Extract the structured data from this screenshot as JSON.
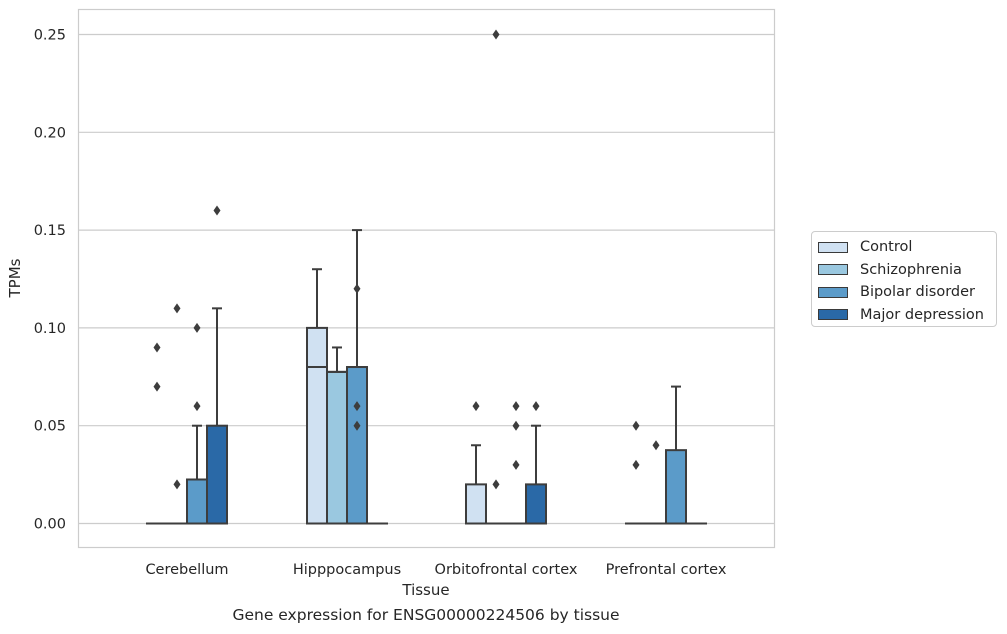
{
  "caption": "Gene expression for ENSG00000224506 by tissue",
  "colors": {
    "Control": "#d0e1f2",
    "Schizophrenia": "#9ac8e0",
    "Bipolar disorder": "#5b9bc9",
    "Major depression": "#2a69a7",
    "edge": "#3d3d3d",
    "grid": "#cccccc"
  },
  "chart_data": {
    "type": "box",
    "xlabel": "Tissue",
    "ylabel": "TPMs",
    "ylim": [
      -0.012,
      0.264
    ],
    "yticks": [
      "0.00",
      "0.05",
      "0.10",
      "0.15",
      "0.20",
      "0.25"
    ],
    "grid": true,
    "legend_position": "right",
    "categories": [
      "Cerebellum",
      "Hipppocampus",
      "Orbitofrontal cortex",
      "Prefrontal cortex"
    ],
    "series": [
      {
        "name": "Control",
        "boxes": [
          {
            "q1": 0,
            "median": 0,
            "q3": 0,
            "whislo": 0,
            "whishi": 0,
            "fliers": [
              0.07,
              0.09
            ]
          },
          {
            "q1": 0,
            "median": 0.08,
            "q3": 0.1,
            "whislo": 0,
            "whishi": 0.13,
            "fliers": []
          },
          {
            "q1": 0,
            "median": 0,
            "q3": 0.02,
            "whislo": 0,
            "whishi": 0.04,
            "fliers": [
              0.06
            ]
          },
          {
            "q1": 0,
            "median": 0,
            "q3": 0,
            "whislo": 0,
            "whishi": 0,
            "fliers": [
              0.03,
              0.05
            ]
          }
        ]
      },
      {
        "name": "Schizophrenia",
        "boxes": [
          {
            "q1": 0,
            "median": 0,
            "q3": 0,
            "whislo": 0,
            "whishi": 0,
            "fliers": [
              0.02,
              0.11
            ]
          },
          {
            "q1": 0,
            "median": 0.0775,
            "q3": 0.0775,
            "whislo": 0,
            "whishi": 0.09,
            "fliers": []
          },
          {
            "q1": 0,
            "median": 0,
            "q3": 0,
            "whislo": 0,
            "whishi": 0,
            "fliers": [
              0.02,
              0.25
            ]
          },
          {
            "q1": 0,
            "median": 0,
            "q3": 0,
            "whislo": 0,
            "whishi": 0,
            "fliers": [
              0.04
            ]
          }
        ]
      },
      {
        "name": "Bipolar disorder",
        "boxes": [
          {
            "q1": 0,
            "median": 0,
            "q3": 0.0225,
            "whislo": 0,
            "whishi": 0.05,
            "fliers": [
              0.06,
              0.1
            ]
          },
          {
            "q1": 0,
            "median": 0.08,
            "q3": 0.08,
            "whislo": 0,
            "whishi": 0.15,
            "fliers": [
              0.05,
              0.06,
              0.12
            ]
          },
          {
            "q1": 0,
            "median": 0,
            "q3": 0,
            "whislo": 0,
            "whishi": 0,
            "fliers": [
              0.03,
              0.05,
              0.06
            ]
          },
          {
            "q1": 0,
            "median": 0,
            "q3": 0.0375,
            "whislo": 0,
            "whishi": 0.07,
            "fliers": []
          }
        ]
      },
      {
        "name": "Major depression",
        "boxes": [
          {
            "q1": 0,
            "median": 0,
            "q3": 0.05,
            "whislo": 0,
            "whishi": 0.11,
            "fliers": [
              0.16
            ]
          },
          {
            "q1": 0,
            "median": 0,
            "q3": 0,
            "whislo": 0,
            "whishi": 0,
            "fliers": []
          },
          {
            "q1": 0,
            "median": 0,
            "q3": 0.02,
            "whislo": 0,
            "whishi": 0.05,
            "fliers": [
              0.06
            ]
          },
          {
            "q1": 0,
            "median": 0,
            "q3": 0,
            "whislo": 0,
            "whishi": 0,
            "fliers": []
          }
        ]
      }
    ]
  }
}
